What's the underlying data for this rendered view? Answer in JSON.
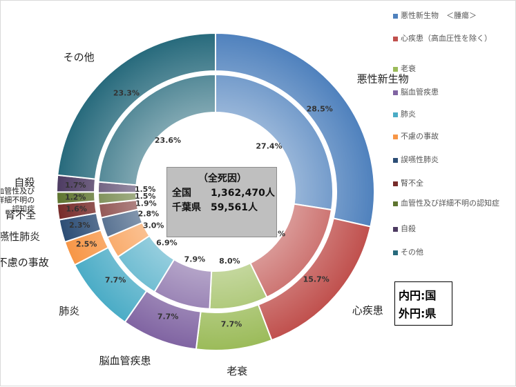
{
  "chart_data": {
    "type": "donut",
    "categories": [
      "悪性新生物",
      "心疾患",
      "老衰",
      "脳血管疾患",
      "肺炎",
      "不慮の事故",
      "誤嚥性肺炎",
      "腎不全",
      "血管性及び詳細不明の認知症",
      "自殺",
      "その他"
    ],
    "outer_labels": [
      "悪性新生物",
      "心疾患",
      "老衰",
      "脳血管疾患",
      "肺炎",
      "不慮の事故",
      "誤嚥性肺炎",
      "腎不全",
      "血管性及び\n詳細不明の\n認知症",
      "自殺",
      "その他"
    ],
    "colors": [
      "#4f81bd",
      "#c0504d",
      "#9bbb59",
      "#8064a2",
      "#4bacc6",
      "#f79646",
      "#2c4d75",
      "#772c2a",
      "#5f7530",
      "#4d3b62",
      "#276a7c"
    ],
    "series": [
      {
        "ring": "inner",
        "values": [
          27.4,
          15.3,
          8.0,
          7.9,
          6.9,
          3.0,
          2.8,
          1.9,
          1.5,
          1.5,
          23.6
        ]
      },
      {
        "ring": "outer",
        "values": [
          28.5,
          15.7,
          7.7,
          7.7,
          7.7,
          2.5,
          2.3,
          1.6,
          1.2,
          1.7,
          23.3
        ]
      }
    ],
    "value_labels": {
      "inner": [
        "27.4%",
        "15.3%",
        "8.0%",
        "7.9%",
        "6.9%",
        "3.0%",
        "2.8%",
        "1.9%",
        "1.5%",
        "1.5%",
        "23.6%"
      ],
      "outer": [
        "28.5%",
        "15.7%",
        "7.7%",
        "7.7%",
        "7.7%",
        "2.5%",
        "2.3%",
        "1.6%",
        "1.2%",
        "1.7%",
        "23.3%"
      ]
    },
    "legend": {
      "position": "right",
      "entries": [
        "悪性新生物　＜腫瘍＞",
        "心疾患（高血圧性を除く）",
        "老衰",
        "脳血管疾患",
        "肺炎",
        "不慮の事故",
        "誤嚥性肺炎",
        "腎不全",
        "血管性及び詳細不明の認知症",
        "自殺",
        "その他"
      ]
    },
    "center_box": {
      "title": "（全死因）",
      "rows": [
        {
          "label": "全国",
          "value": "1,362,470人"
        },
        {
          "label": "千葉県",
          "value": "59,561人"
        }
      ]
    },
    "note": [
      "内円:国",
      "外円:県"
    ]
  }
}
